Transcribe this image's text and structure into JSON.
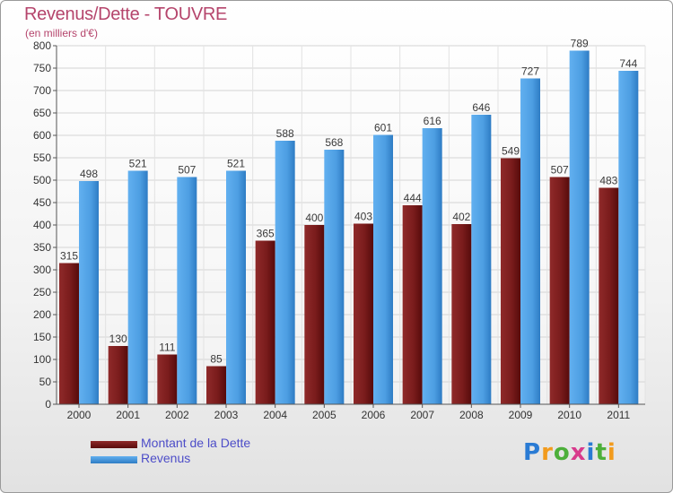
{
  "header": {
    "title": "Revenus/Dette - TOUVRE",
    "subtitle": "(en milliers d'€)"
  },
  "colors": {
    "debt": "#7a1c1c",
    "revenue": "#4d9ee2"
  },
  "legend": {
    "debt_label": "Montant de la Dette",
    "revenue_label": "Revenus"
  },
  "logo": {
    "text": "Proxiti",
    "letter_colors": [
      "#2a7bd4",
      "#f29b1d",
      "#4caf3a",
      "#d83a8c",
      "#2a7bd4",
      "#4caf3a",
      "#f29b1d"
    ]
  },
  "chart_data": {
    "type": "bar",
    "title": "Revenus/Dette - TOUVRE",
    "subtitle": "(en milliers d'€)",
    "xlabel": "",
    "ylabel": "",
    "ylim": [
      0,
      800
    ],
    "y_ticks": [
      0,
      50,
      100,
      150,
      200,
      250,
      300,
      350,
      400,
      450,
      500,
      550,
      600,
      650,
      700,
      750,
      800
    ],
    "grid": true,
    "legend_position": "bottom-left",
    "categories": [
      "2000",
      "2001",
      "2002",
      "2003",
      "2004",
      "2005",
      "2006",
      "2007",
      "2008",
      "2009",
      "2010",
      "2011"
    ],
    "series": [
      {
        "name": "Montant de la Dette",
        "values": [
          315,
          130,
          111,
          85,
          365,
          400,
          403,
          444,
          402,
          549,
          507,
          483
        ]
      },
      {
        "name": "Revenus",
        "values": [
          498,
          521,
          507,
          521,
          588,
          568,
          601,
          616,
          646,
          727,
          789,
          744
        ]
      }
    ]
  }
}
